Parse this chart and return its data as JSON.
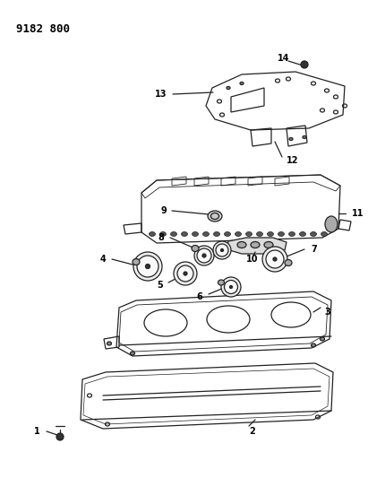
{
  "title": "9182 800",
  "background_color": "#ffffff",
  "line_color": "#222222",
  "label_color": "#000000",
  "fig_width": 4.11,
  "fig_height": 5.33,
  "dpi": 100
}
